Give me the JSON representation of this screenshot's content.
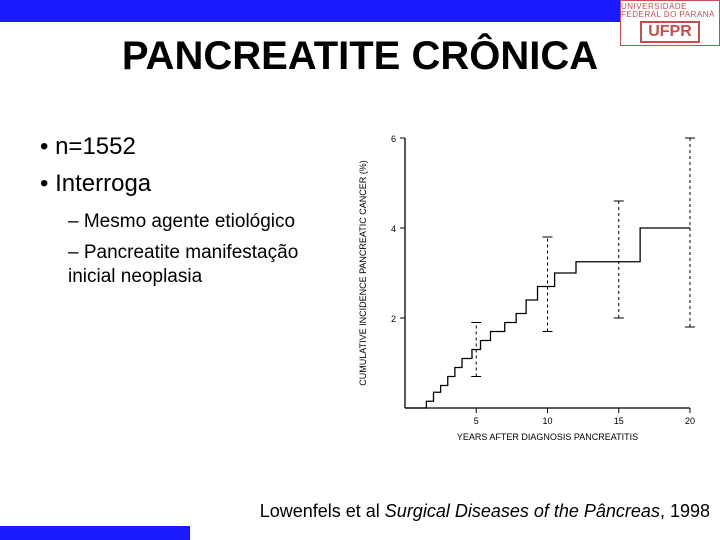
{
  "header": {
    "logo_top": "UNIVERSIDADE FEDERAL DO PARANÁ",
    "logo_main": "UFPR",
    "bar_color": "#1a1aff"
  },
  "title": "PANCREATITE CRÔNICA",
  "bullets": {
    "level1": [
      "n=1552",
      "Interroga"
    ],
    "level2": [
      "Mesmo agente etiológico",
      "Pancreatite manifestação inicial neoplasia"
    ],
    "font_size_l1": 24,
    "font_size_l2": 19
  },
  "chart": {
    "type": "step",
    "xlabel": "YEARS AFTER DIAGNOSIS PANCREATITIS",
    "ylabel": "CUMULATIVE INCIDENCE PANCREATIC CANCER (%)",
    "xlim": [
      0,
      20
    ],
    "ylim": [
      0,
      6
    ],
    "xtick_step": 5,
    "ytick_step": 2,
    "x_ticks": [
      5,
      10,
      15,
      20
    ],
    "y_ticks": [
      2,
      4,
      6
    ],
    "line_color": "#000000",
    "line_width": 1.3,
    "background_color": "#ffffff",
    "label_fontsize": 9,
    "tick_fontsize": 9,
    "step_points": [
      [
        0,
        0
      ],
      [
        1.5,
        0
      ],
      [
        1.5,
        0.15
      ],
      [
        2.0,
        0.15
      ],
      [
        2.0,
        0.35
      ],
      [
        2.5,
        0.35
      ],
      [
        2.5,
        0.5
      ],
      [
        3.0,
        0.5
      ],
      [
        3.0,
        0.7
      ],
      [
        3.5,
        0.7
      ],
      [
        3.5,
        0.9
      ],
      [
        4.0,
        0.9
      ],
      [
        4.0,
        1.1
      ],
      [
        4.7,
        1.1
      ],
      [
        4.7,
        1.3
      ],
      [
        5.3,
        1.3
      ],
      [
        5.3,
        1.5
      ],
      [
        6.0,
        1.5
      ],
      [
        6.0,
        1.7
      ],
      [
        7.0,
        1.7
      ],
      [
        7.0,
        1.9
      ],
      [
        7.8,
        1.9
      ],
      [
        7.8,
        2.1
      ],
      [
        8.5,
        2.1
      ],
      [
        8.5,
        2.4
      ],
      [
        9.3,
        2.4
      ],
      [
        9.3,
        2.7
      ],
      [
        10.5,
        2.7
      ],
      [
        10.5,
        3.0
      ],
      [
        12.0,
        3.0
      ],
      [
        12.0,
        3.25
      ],
      [
        14.0,
        3.25
      ],
      [
        14.0,
        3.25
      ],
      [
        16.5,
        3.25
      ],
      [
        16.5,
        4.0
      ],
      [
        20.0,
        4.0
      ]
    ],
    "error_bars": [
      {
        "x": 5,
        "lo": 0.7,
        "hi": 1.9
      },
      {
        "x": 10,
        "lo": 1.7,
        "hi": 3.8
      },
      {
        "x": 15,
        "lo": 2.0,
        "hi": 4.6
      },
      {
        "x": 20,
        "lo": 1.8,
        "hi": 6.0
      }
    ]
  },
  "citation": {
    "prefix": "Lowenfels et al ",
    "italic": "Surgical Diseases of the Pâncreas",
    "suffix": ", 1998"
  }
}
